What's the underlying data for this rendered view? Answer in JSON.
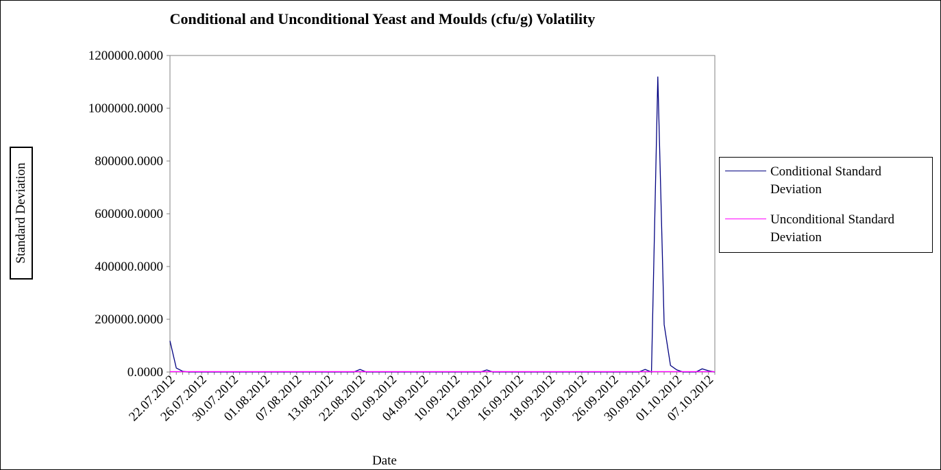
{
  "chart_data": {
    "type": "line",
    "title": "Conditional and Unconditional Yeast and Moulds (cfu/g) Volatility",
    "x_label": "Date",
    "y_label": "Standard Deviation",
    "categories": [
      "22.07.2012",
      null,
      null,
      null,
      null,
      "26.07.2012",
      null,
      null,
      null,
      null,
      "30.07.2012",
      null,
      null,
      null,
      null,
      "01.08.2012",
      null,
      null,
      null,
      null,
      "07.08.2012",
      null,
      null,
      null,
      null,
      "13.08.2012",
      null,
      null,
      null,
      null,
      "22.08.2012",
      null,
      null,
      null,
      null,
      "02.09.2012",
      null,
      null,
      null,
      null,
      "04.09.2012",
      null,
      null,
      null,
      null,
      "10.09.2012",
      null,
      null,
      null,
      null,
      "12.09.2012",
      null,
      null,
      null,
      null,
      "16.09.2012",
      null,
      null,
      null,
      null,
      "18.09.2012",
      null,
      null,
      null,
      null,
      "20.09.2012",
      null,
      null,
      null,
      null,
      "26.09.2012",
      null,
      null,
      null,
      null,
      "30.09.2012",
      null,
      null,
      null,
      null,
      "01.10.2012",
      null,
      null,
      null,
      null,
      "07.10.2012",
      null
    ],
    "series": [
      {
        "name": "Conditional Standard Deviation",
        "color": "#000080",
        "values": [
          118000,
          15000,
          3000,
          0,
          0,
          0,
          0,
          0,
          0,
          0,
          0,
          0,
          0,
          0,
          0,
          0,
          0,
          0,
          0,
          0,
          0,
          0,
          0,
          0,
          0,
          0,
          0,
          0,
          0,
          0,
          10000,
          0,
          0,
          0,
          0,
          0,
          0,
          0,
          0,
          0,
          0,
          0,
          0,
          0,
          0,
          0,
          0,
          0,
          0,
          0,
          8000,
          0,
          0,
          0,
          0,
          0,
          0,
          0,
          0,
          0,
          0,
          0,
          0,
          0,
          0,
          0,
          0,
          0,
          0,
          0,
          0,
          0,
          0,
          0,
          0,
          10000,
          0,
          1120000,
          180000,
          25000,
          8000,
          0,
          0,
          0,
          12000,
          5000,
          0
        ]
      },
      {
        "name": "Unconditional Standard Deviation",
        "color": "#ff00ff",
        "values": [
          1500,
          1500,
          1500,
          1500,
          1500,
          1500,
          1500,
          1500,
          1500,
          1500,
          1500,
          1500,
          1500,
          1500,
          1500,
          1500,
          1500,
          1500,
          1500,
          1500,
          1500,
          1500,
          1500,
          1500,
          1500,
          1500,
          1500,
          1500,
          1500,
          1500,
          1500,
          1500,
          1500,
          1500,
          1500,
          1500,
          1500,
          1500,
          1500,
          1500,
          1500,
          1500,
          1500,
          1500,
          1500,
          1500,
          1500,
          1500,
          1500,
          1500,
          1500,
          1500,
          1500,
          1500,
          1500,
          1500,
          1500,
          1500,
          1500,
          1500,
          1500,
          1500,
          1500,
          1500,
          1500,
          1500,
          1500,
          1500,
          1500,
          1500,
          1500,
          1500,
          1500,
          1500,
          1500,
          1500,
          1500,
          1500,
          1500,
          1500,
          1500,
          1500,
          1500,
          1500,
          1500,
          1500,
          1500
        ]
      }
    ],
    "ylim": [
      0,
      1200000
    ],
    "yticks": [
      {
        "value": 0,
        "label": "0.0000"
      },
      {
        "value": 200000,
        "label": "200000.0000"
      },
      {
        "value": 400000,
        "label": "400000.0000"
      },
      {
        "value": 600000,
        "label": "600000.0000"
      },
      {
        "value": 800000,
        "label": "800000.0000"
      },
      {
        "value": 1000000,
        "label": "1000000.0000"
      },
      {
        "value": 1200000,
        "label": "1200000.0000"
      }
    ],
    "legend_position": "right"
  }
}
